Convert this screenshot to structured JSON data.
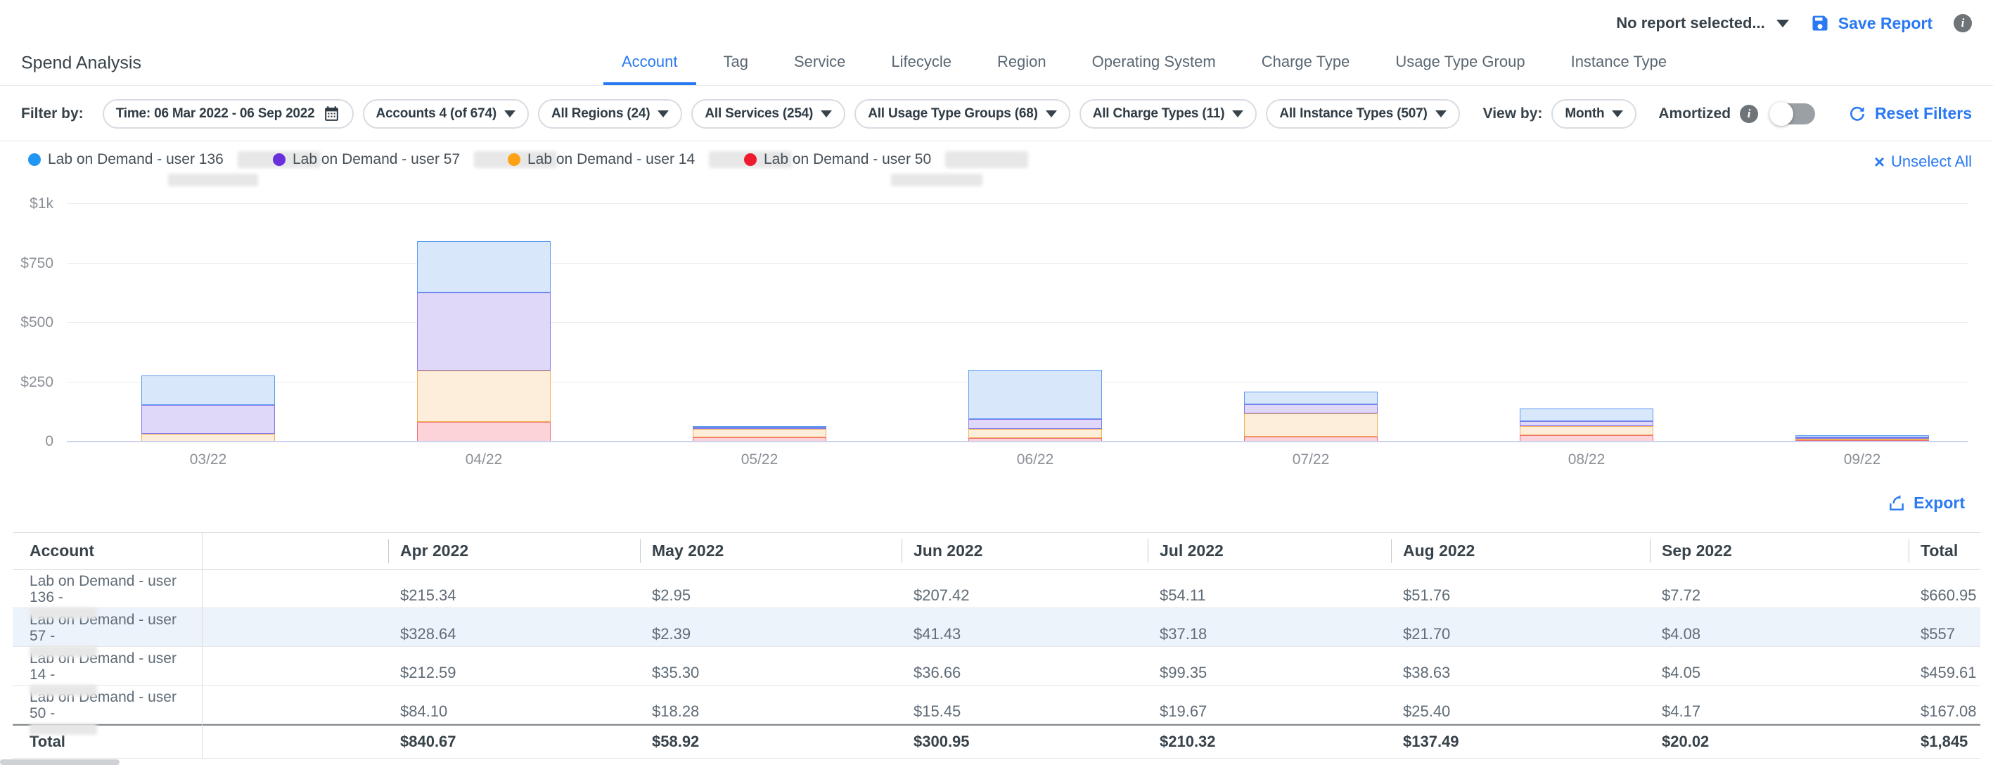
{
  "header": {
    "report_selector": "No report selected...",
    "save_label": "Save Report"
  },
  "page": {
    "title": "Spend Analysis"
  },
  "tabs": [
    {
      "label": "Account",
      "active": true
    },
    {
      "label": "Tag",
      "active": false
    },
    {
      "label": "Service",
      "active": false
    },
    {
      "label": "Lifecycle",
      "active": false
    },
    {
      "label": "Region",
      "active": false
    },
    {
      "label": "Operating System",
      "active": false
    },
    {
      "label": "Charge Type",
      "active": false
    },
    {
      "label": "Usage Type Group",
      "active": false
    },
    {
      "label": "Instance Type",
      "active": false
    }
  ],
  "filters": {
    "label": "Filter by:",
    "pills": [
      {
        "label": "Time: 06 Mar 2022 - 06 Sep 2022",
        "icon": "calendar-icon"
      },
      {
        "label": "Accounts 4 (of 674)",
        "icon": "caret-down-icon"
      },
      {
        "label": "All Regions (24)",
        "icon": "caret-down-icon"
      },
      {
        "label": "All Services (254)",
        "icon": "caret-down-icon"
      },
      {
        "label": "All Usage Type Groups (68)",
        "icon": "caret-down-icon"
      },
      {
        "label": "All Charge Types (11)",
        "icon": "caret-down-icon"
      },
      {
        "label": "All Instance Types (507)",
        "icon": "caret-down-icon"
      }
    ],
    "view_by_label": "View by:",
    "view_by_value": "Month",
    "amortized_label": "Amortized",
    "amortized_on": false,
    "reset_label": "Reset Filters"
  },
  "legend": {
    "items": [
      {
        "label": "Lab on Demand - user 136",
        "color": "#2196f3",
        "redacted_suffix": true,
        "redacted_second_line": true
      },
      {
        "label": "Lab on Demand - user 57",
        "color": "#6930db",
        "redacted_suffix": true,
        "redacted_second_line": false
      },
      {
        "label": "Lab on Demand - user 14",
        "color": "#ffa114",
        "redacted_suffix": true,
        "redacted_second_line": false
      },
      {
        "label": "Lab on Demand - user 50",
        "color": "#ed1b2c",
        "redacted_suffix": true,
        "redacted_second_line": true
      }
    ],
    "unselect_all": "Unselect All"
  },
  "chart_data": {
    "type": "bar",
    "stacked": true,
    "title": "",
    "x": [
      "03/22",
      "04/22",
      "05/22",
      "06/22",
      "07/22",
      "08/22",
      "09/22"
    ],
    "xlabel": "",
    "ylabel": "",
    "ylim": [
      0,
      1000
    ],
    "y_ticks": [
      "$1k",
      "$750",
      "$500",
      "$250",
      "0"
    ],
    "grid": true,
    "legend_position": "top",
    "stack_order_bottom_to_top": [
      "Lab on Demand - user 50",
      "Lab on Demand - user 14",
      "Lab on Demand - user 57",
      "Lab on Demand - user 136"
    ],
    "series": [
      {
        "name": "Lab on Demand - user 136",
        "color": "#2196f3",
        "fill": "#d9e7fb",
        "stroke": "#5b9bef",
        "values": [
          121.65,
          215.34,
          2.95,
          207.42,
          54.11,
          51.76,
          7.72
        ]
      },
      {
        "name": "Lab on Demand - user 57",
        "color": "#6930db",
        "fill": "#dfd8f8",
        "stroke": "#8178ec",
        "values": [
          121.58,
          328.64,
          2.39,
          41.43,
          37.18,
          21.7,
          4.08
        ]
      },
      {
        "name": "Lab on Demand - user 14",
        "color": "#ffa114",
        "fill": "#fceedb",
        "stroke": "#f3af53",
        "values": [
          33.03,
          212.59,
          35.3,
          36.66,
          99.35,
          38.63,
          4.05
        ]
      },
      {
        "name": "Lab on Demand - user 50",
        "color": "#ed1b2c",
        "fill": "#fbd3d8",
        "stroke": "#ee6b72",
        "values": [
          0.01,
          84.1,
          18.28,
          15.45,
          19.67,
          25.4,
          4.17
        ]
      }
    ]
  },
  "export_label": "Export",
  "table": {
    "headers": [
      "Account",
      "Apr 2022",
      "May 2022",
      "Jun 2022",
      "Jul 2022",
      "Aug 2022",
      "Sep 2022",
      "Total"
    ],
    "rows": [
      {
        "account": "Lab on Demand - user 136 -",
        "redacted": true,
        "highlight": false,
        "values": [
          "$215.34",
          "$2.95",
          "$207.42",
          "$54.11",
          "$51.76",
          "$7.72",
          "$660.95"
        ]
      },
      {
        "account": "Lab on Demand - user 57 -",
        "redacted": true,
        "highlight": true,
        "values": [
          "$328.64",
          "$2.39",
          "$41.43",
          "$37.18",
          "$21.70",
          "$4.08",
          "$557"
        ]
      },
      {
        "account": "Lab on Demand - user 14 -",
        "redacted": true,
        "highlight": false,
        "values": [
          "$212.59",
          "$35.30",
          "$36.66",
          "$99.35",
          "$38.63",
          "$4.05",
          "$459.61"
        ]
      },
      {
        "account": "Lab on Demand - user 50 -",
        "redacted": true,
        "highlight": false,
        "values": [
          "$84.10",
          "$18.28",
          "$15.45",
          "$19.67",
          "$25.40",
          "$4.17",
          "$167.08"
        ]
      }
    ],
    "total_row": {
      "label": "Total",
      "values": [
        "$840.67",
        "$58.92",
        "$300.95",
        "$210.32",
        "$137.49",
        "$20.02",
        "$1,845"
      ]
    }
  }
}
